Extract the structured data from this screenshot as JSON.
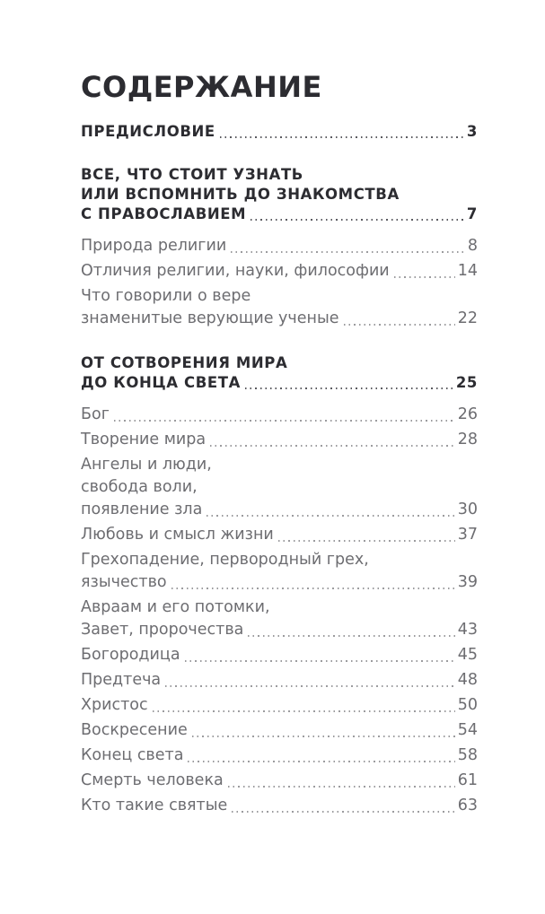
{
  "page": {
    "title": "СОДЕРЖАНИЕ"
  },
  "colors": {
    "background": "#ffffff",
    "heading_text": "#2c2c31",
    "entry_text": "#6d6d71",
    "entry_leader_dots": "#9b9b9e",
    "chapter_leader_dots": "#5a5a5f"
  },
  "toc": {
    "items": [
      {
        "kind": "chapter",
        "lines": [
          "ПРЕДИСЛОВИЕ"
        ],
        "page": "3"
      },
      {
        "kind": "chapter",
        "lines": [
          "ВСЕ, ЧТО СТОИТ УЗНАТЬ",
          "ИЛИ ВСПОМНИТЬ ДО ЗНАКОМСТВА",
          "С ПРАВОСЛАВИЕМ"
        ],
        "page": "7"
      },
      {
        "kind": "entry",
        "lines": [
          "Природа религии"
        ],
        "page": "8"
      },
      {
        "kind": "entry",
        "lines": [
          "Отличия религии, науки, философии"
        ],
        "page": "14"
      },
      {
        "kind": "entry",
        "lines": [
          "Что говорили о вере",
          "знаменитые верующие ученые"
        ],
        "page": "22"
      },
      {
        "kind": "chapter",
        "lines": [
          "ОТ СОТВОРЕНИЯ МИРА",
          "ДО КОНЦА СВЕТА"
        ],
        "page": "25"
      },
      {
        "kind": "entry",
        "lines": [
          "Бог"
        ],
        "page": "26"
      },
      {
        "kind": "entry",
        "lines": [
          "Творение мира"
        ],
        "page": "28"
      },
      {
        "kind": "entry",
        "lines": [
          "Ангелы и люди,",
          "свобода воли,",
          "появление зла"
        ],
        "page": "30"
      },
      {
        "kind": "entry",
        "lines": [
          "Любовь и смысл жизни"
        ],
        "page": "37"
      },
      {
        "kind": "entry",
        "lines": [
          "Грехопадение, первородный грех,",
          "язычество"
        ],
        "page": "39"
      },
      {
        "kind": "entry",
        "lines": [
          "Авраам и его потомки,",
          "Завет, пророчества"
        ],
        "page": "43"
      },
      {
        "kind": "entry",
        "lines": [
          "Богородица"
        ],
        "page": "45"
      },
      {
        "kind": "entry",
        "lines": [
          "Предтеча"
        ],
        "page": "48"
      },
      {
        "kind": "entry",
        "lines": [
          "Христос"
        ],
        "page": "50"
      },
      {
        "kind": "entry",
        "lines": [
          "Воскресение"
        ],
        "page": "54"
      },
      {
        "kind": "entry",
        "lines": [
          "Конец света"
        ],
        "page": "58"
      },
      {
        "kind": "entry",
        "lines": [
          "Смерть человека"
        ],
        "page": "61"
      },
      {
        "kind": "entry",
        "lines": [
          "Кто такие святые"
        ],
        "page": "63"
      }
    ]
  }
}
